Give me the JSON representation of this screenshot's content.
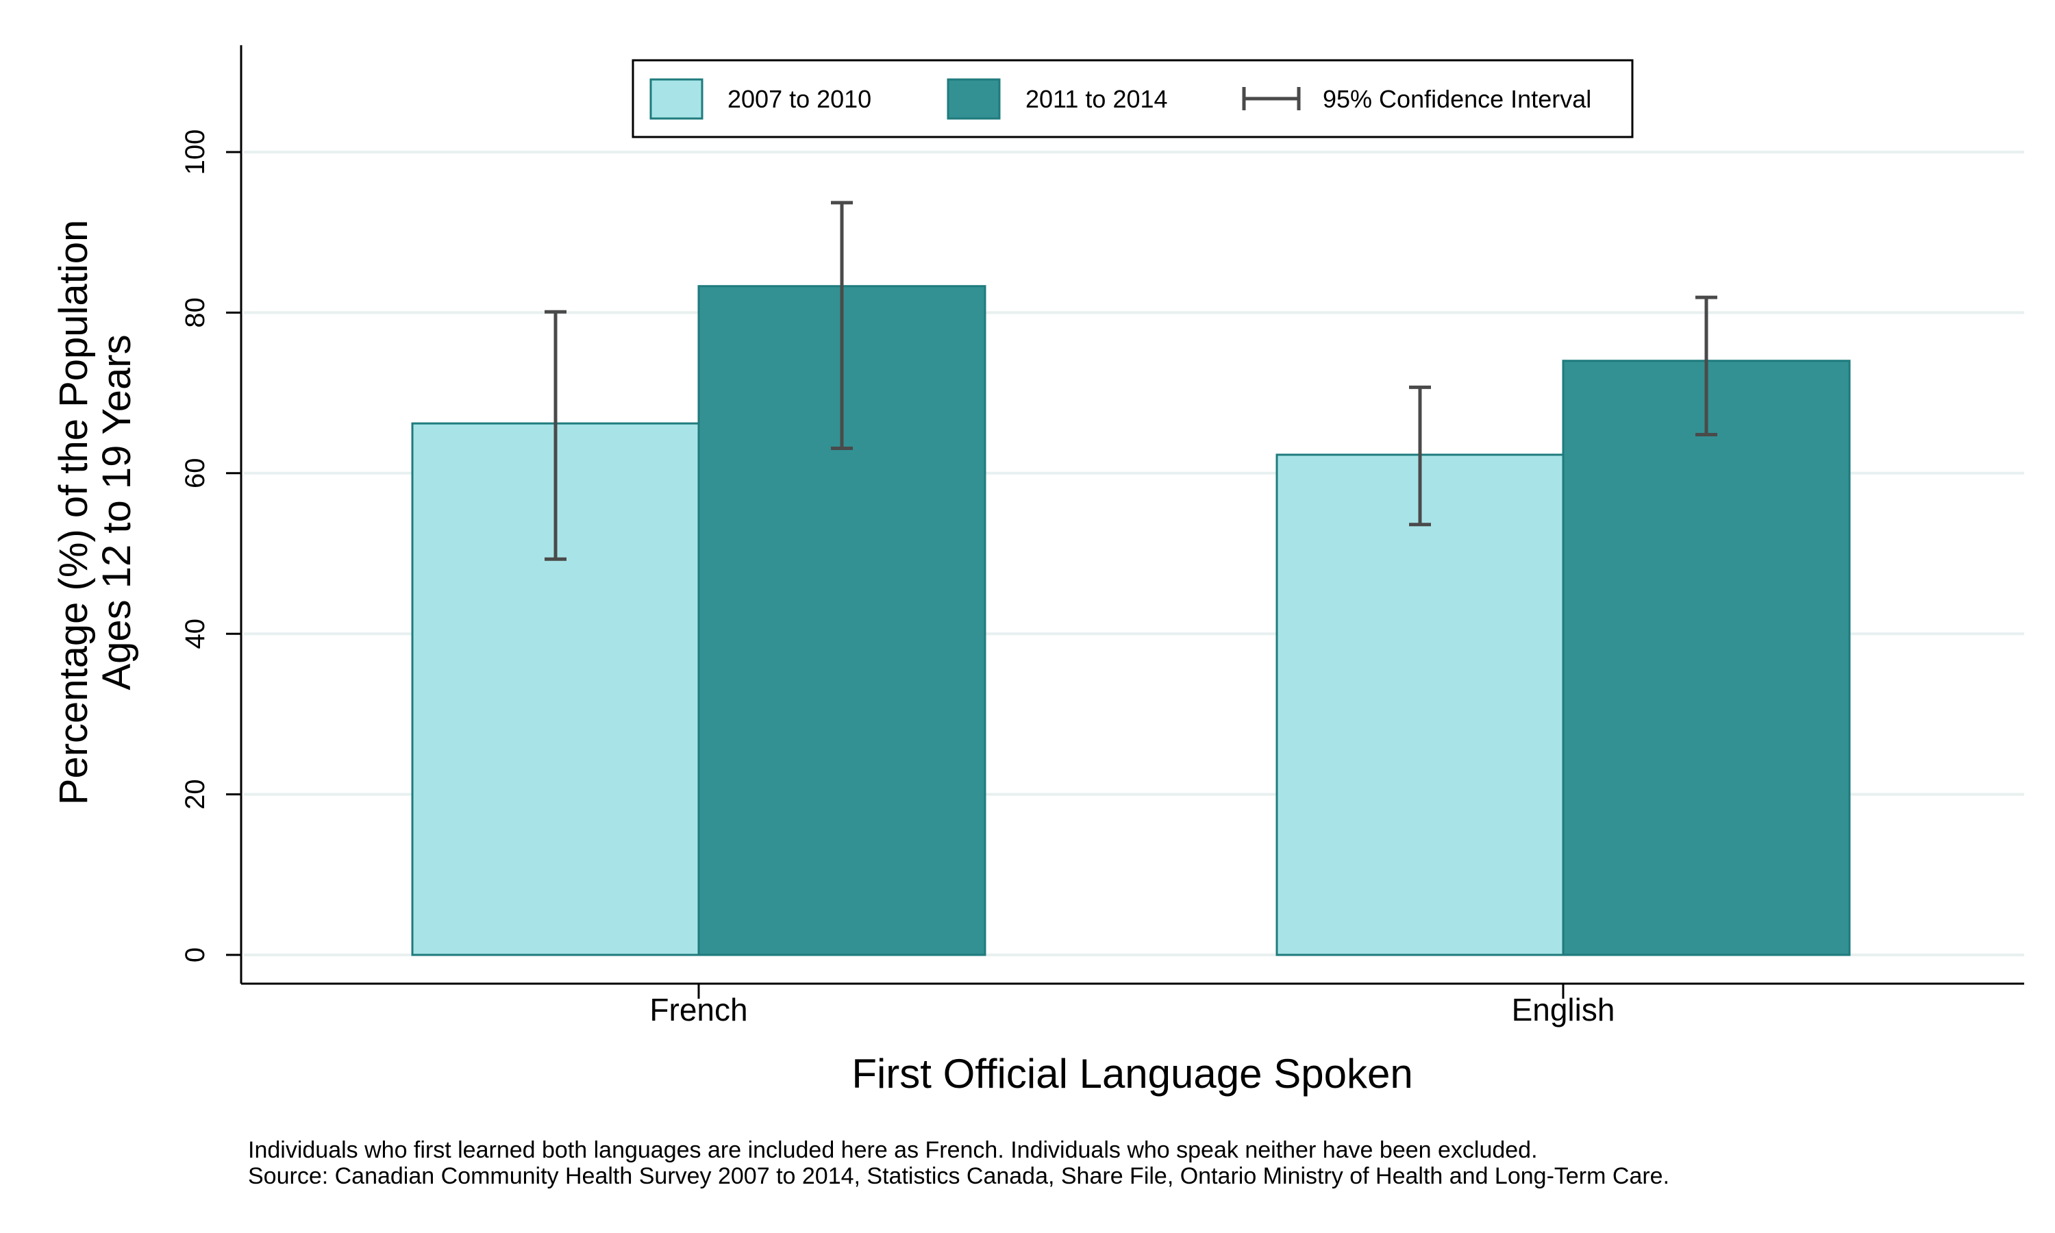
{
  "colors": {
    "series_2007_2010": "#a8e4e7",
    "series_2011_2014": "#339193",
    "bar_stroke": "#1f7b7d",
    "error_bar": "#4a4a4a",
    "grid": "#e8f0f0",
    "axis": "#000000"
  },
  "chart_data": {
    "type": "bar",
    "title": "",
    "xlabel": "First Official Language Spoken",
    "ylabel_line1": "Percentage (%) of the Population",
    "ylabel_line2": "Ages 12 to 19 Years",
    "categories": [
      "French",
      "English"
    ],
    "ylim": [
      0,
      113
    ],
    "yticks": [
      0,
      20,
      40,
      60,
      80,
      100
    ],
    "grid": true,
    "legend_position": "top-center",
    "series": [
      {
        "name": "2007 to 2010",
        "values": [
          66.2,
          62.3
        ],
        "ci_low": [
          49.3,
          53.6
        ],
        "ci_high": [
          80.1,
          70.7
        ]
      },
      {
        "name": "2011 to 2014",
        "values": [
          83.3,
          74.0
        ],
        "ci_low": [
          63.1,
          64.8
        ],
        "ci_high": [
          93.7,
          81.9
        ]
      }
    ],
    "ci_legend_label": "95% Confidence Interval"
  },
  "footnotes": {
    "line1": "Individuals who first learned both languages are included here as French.  Individuals who speak neither have been excluded.",
    "line2": "Source: Canadian Community Health Survey 2007 to 2014, Statistics Canada, Share File, Ontario Ministry of Health and Long-Term Care."
  }
}
